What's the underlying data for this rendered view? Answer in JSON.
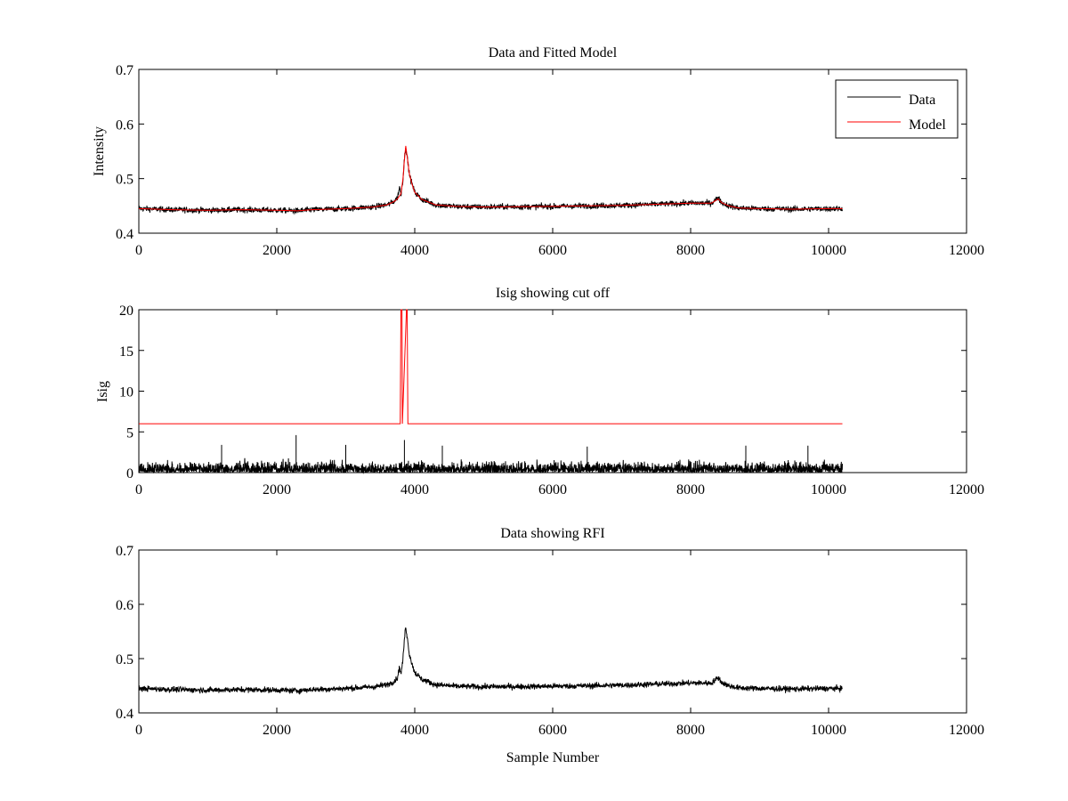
{
  "chart_data": [
    {
      "id": "top",
      "type": "line",
      "title": "Data and Fitted Model",
      "xlabel": "",
      "ylabel": "Intensity",
      "xlim": [
        0,
        12000
      ],
      "ylim": [
        0.4,
        0.7
      ],
      "xticks": [
        "0",
        "2000",
        "4000",
        "6000",
        "8000",
        "10000",
        "12000"
      ],
      "yticks": [
        "0.4",
        "0.5",
        "0.6",
        "0.7"
      ],
      "grid": false,
      "legend": {
        "placement": "top-right",
        "entries": [
          "Data",
          "Model"
        ]
      },
      "series": [
        {
          "name": "Data",
          "color": "#000000",
          "noise": 0.005,
          "x": [
            0,
            500,
            1000,
            1500,
            2000,
            2300,
            2500,
            3000,
            3400,
            3600,
            3700,
            3750,
            3780,
            3800,
            3830,
            3850,
            3870,
            3890,
            3920,
            3960,
            4000,
            4100,
            4300,
            4600,
            5000,
            6000,
            7000,
            7500,
            8000,
            8300,
            8400,
            8450,
            8550,
            8700,
            9000,
            9500,
            10000,
            10200
          ],
          "y": [
            0.445,
            0.443,
            0.442,
            0.443,
            0.442,
            0.441,
            0.443,
            0.445,
            0.448,
            0.452,
            0.458,
            0.465,
            0.485,
            0.47,
            0.5,
            0.535,
            0.56,
            0.54,
            0.51,
            0.49,
            0.475,
            0.462,
            0.452,
            0.449,
            0.448,
            0.449,
            0.451,
            0.453,
            0.455,
            0.455,
            0.465,
            0.456,
            0.45,
            0.446,
            0.445,
            0.444,
            0.445,
            0.445
          ]
        },
        {
          "name": "Model",
          "color": "#ff0000",
          "noise": 0,
          "x": [
            0,
            500,
            1000,
            1500,
            2000,
            2300,
            2500,
            3000,
            3400,
            3600,
            3700,
            3750,
            3800,
            3830,
            3850,
            3870,
            3890,
            3920,
            3960,
            4000,
            4100,
            4300,
            4600,
            5000,
            6000,
            7000,
            7500,
            8000,
            8300,
            8400,
            8450,
            8550,
            8700,
            9000,
            9500,
            10000,
            10200
          ],
          "y": [
            0.445,
            0.443,
            0.442,
            0.443,
            0.442,
            0.441,
            0.443,
            0.445,
            0.448,
            0.452,
            0.458,
            0.463,
            0.472,
            0.5,
            0.535,
            0.56,
            0.54,
            0.51,
            0.49,
            0.475,
            0.462,
            0.452,
            0.449,
            0.448,
            0.449,
            0.451,
            0.453,
            0.455,
            0.455,
            0.463,
            0.456,
            0.45,
            0.446,
            0.445,
            0.444,
            0.445,
            0.445
          ]
        }
      ]
    },
    {
      "id": "middle",
      "type": "line",
      "title": "Isig showing cut off",
      "xlabel": "",
      "ylabel": "Isig",
      "xlim": [
        0,
        12000
      ],
      "ylim": [
        0,
        20
      ],
      "xticks": [
        "0",
        "2000",
        "4000",
        "6000",
        "8000",
        "10000",
        "12000"
      ],
      "yticks": [
        "0",
        "5",
        "10",
        "15",
        "20"
      ],
      "grid": false,
      "legend": null,
      "series": [
        {
          "color": "#000000",
          "style": "noise-spikes",
          "x_range": [
            0,
            10200
          ],
          "typical_max": 2.5,
          "spikes": [
            [
              2280,
              4.6
            ],
            [
              3850,
              4.0
            ],
            [
              1200,
              3.4
            ],
            [
              3000,
              3.4
            ],
            [
              4400,
              3.3
            ],
            [
              6500,
              3.2
            ],
            [
              8800,
              3.3
            ],
            [
              9700,
              3.3
            ]
          ]
        },
        {
          "color": "#ff0000",
          "x": [
            0,
            3790,
            3795,
            3800,
            3815,
            3820,
            3880,
            3890,
            3900,
            10200
          ],
          "y": [
            6,
            6,
            13,
            20,
            20,
            6,
            20,
            20,
            6,
            6
          ]
        }
      ]
    },
    {
      "id": "bottom",
      "type": "line",
      "title": "Data showing RFI",
      "xlabel": "Sample Number",
      "ylabel": "",
      "xlim": [
        0,
        12000
      ],
      "ylim": [
        0.4,
        0.7
      ],
      "xticks": [
        "0",
        "2000",
        "4000",
        "6000",
        "8000",
        "10000",
        "12000"
      ],
      "yticks": [
        "0.4",
        "0.5",
        "0.6",
        "0.7"
      ],
      "grid": false,
      "legend": null,
      "series": [
        {
          "color": "#000000",
          "noise": 0.005,
          "x": [
            0,
            500,
            1000,
            1500,
            2000,
            2300,
            2500,
            3000,
            3400,
            3600,
            3700,
            3750,
            3780,
            3800,
            3830,
            3850,
            3870,
            3890,
            3920,
            3960,
            4000,
            4100,
            4300,
            4600,
            5000,
            6000,
            7000,
            7500,
            8000,
            8300,
            8400,
            8450,
            8550,
            8700,
            9000,
            9500,
            10000,
            10200
          ],
          "y": [
            0.445,
            0.443,
            0.442,
            0.443,
            0.442,
            0.441,
            0.443,
            0.445,
            0.448,
            0.452,
            0.458,
            0.465,
            0.485,
            0.47,
            0.5,
            0.535,
            0.56,
            0.54,
            0.51,
            0.49,
            0.475,
            0.462,
            0.452,
            0.449,
            0.448,
            0.449,
            0.451,
            0.453,
            0.455,
            0.455,
            0.465,
            0.456,
            0.45,
            0.446,
            0.445,
            0.444,
            0.445,
            0.445
          ]
        }
      ]
    }
  ]
}
